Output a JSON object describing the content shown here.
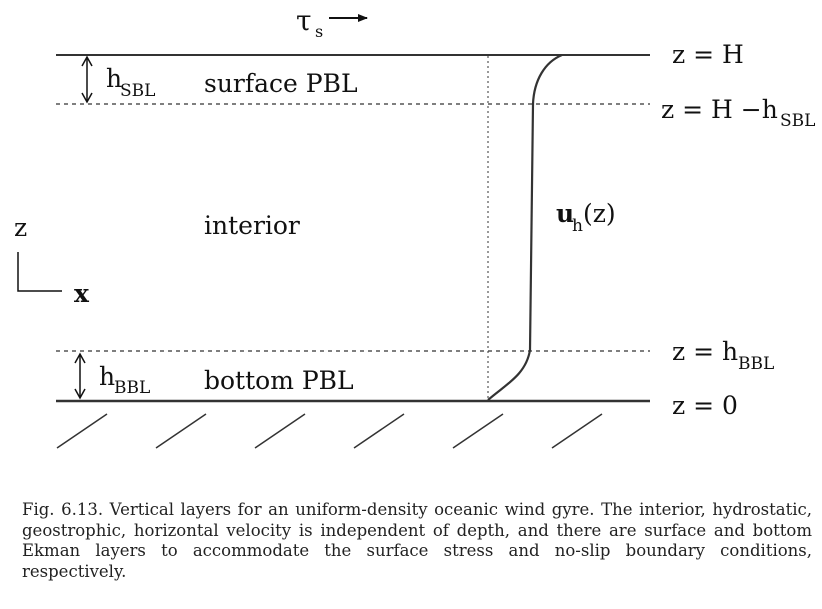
{
  "diagram": {
    "tau": "τ",
    "tau_sub": "s",
    "z_eq_H": "z = H",
    "z_eq_H_minus": "z = H −h",
    "z_eq_H_minus_sub": "SBL",
    "h_sbl": "h",
    "h_sbl_sub": "SBL",
    "surface_pbl": "surface PBL",
    "interior": "interior",
    "z_axis": "z",
    "x_axis": "x",
    "velocity_main": "u",
    "velocity_sub": "h",
    "velocity_arg": "(z)",
    "z_eq_hbbl": "z = h",
    "z_eq_hbbl_sub": "BBL",
    "h_bbl": "h",
    "h_bbl_sub": "BBL",
    "bottom_pbl": "bottom PBL",
    "z_eq_0": "z = 0"
  },
  "caption": {
    "label": "Fig. 6.13.",
    "text": "Vertical layers for an uniform-density oceanic wind gyre. The interior, hydrostatic, geostrophic, horizontal velocity is independent of depth, and there are surface and bottom Ekman layers to accommodate the surface stress and no-slip boundary conditions, respectively."
  }
}
